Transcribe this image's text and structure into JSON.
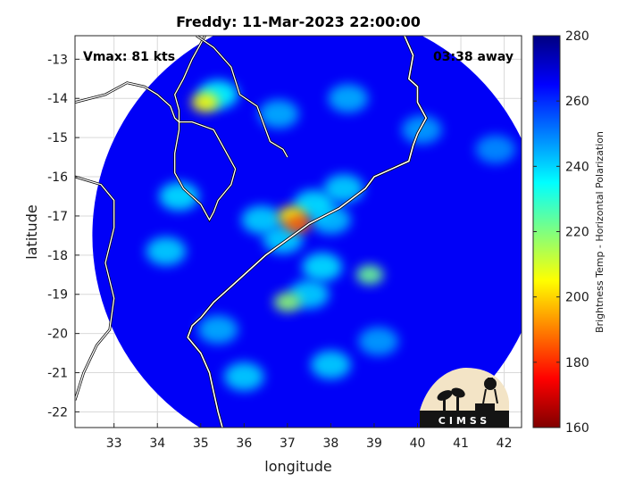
{
  "chart_data": {
    "type": "heatmap",
    "title": "Freddy: 11-Mar-2023 22:00:00",
    "xlabel": "longitude",
    "ylabel": "latitude",
    "xlim": [
      32.1,
      42.4
    ],
    "ylim": [
      -22.4,
      -12.4
    ],
    "xticks": [
      "33",
      "34",
      "35",
      "36",
      "37",
      "38",
      "39",
      "40",
      "41",
      "42"
    ],
    "yticks": [
      "-13",
      "-14",
      "-15",
      "-16",
      "-17",
      "-18",
      "-19",
      "-20",
      "-21",
      "-22"
    ],
    "grid": true,
    "annotations": {
      "vmax": "Vmax: 81 kts",
      "time_away": "03:38 away"
    },
    "colorbar": {
      "label": "Brightness Temp - Horizontal Polarization",
      "range": [
        160,
        280
      ],
      "ticks": [
        "280",
        "260",
        "240",
        "220",
        "200",
        "180",
        "160"
      ],
      "colormap": "jet"
    },
    "swath": {
      "center": [
        37.7,
        -17.5
      ],
      "radius_deg": 5.2,
      "background_temp": 266
    },
    "features": [
      {
        "lon": 37.25,
        "lat": -17.2,
        "temp": 186
      },
      {
        "lon": 37.1,
        "lat": -17.0,
        "temp": 205
      },
      {
        "lon": 36.9,
        "lat": -17.6,
        "temp": 240
      },
      {
        "lon": 37.6,
        "lat": -16.7,
        "temp": 238
      },
      {
        "lon": 38.0,
        "lat": -17.1,
        "temp": 242
      },
      {
        "lon": 36.4,
        "lat": -17.1,
        "temp": 240
      },
      {
        "lon": 35.1,
        "lat": -14.1,
        "temp": 205
      },
      {
        "lon": 35.4,
        "lat": -13.9,
        "temp": 235
      },
      {
        "lon": 37.0,
        "lat": -19.2,
        "temp": 218
      },
      {
        "lon": 37.5,
        "lat": -19.0,
        "temp": 240
      },
      {
        "lon": 38.9,
        "lat": -18.5,
        "temp": 222
      },
      {
        "lon": 37.8,
        "lat": -18.3,
        "temp": 238
      },
      {
        "lon": 38.3,
        "lat": -16.3,
        "temp": 240
      },
      {
        "lon": 34.5,
        "lat": -16.5,
        "temp": 238
      },
      {
        "lon": 34.2,
        "lat": -17.9,
        "temp": 240
      },
      {
        "lon": 38.0,
        "lat": -20.8,
        "temp": 240
      },
      {
        "lon": 36.0,
        "lat": -21.1,
        "temp": 240
      },
      {
        "lon": 35.4,
        "lat": -19.9,
        "temp": 244
      },
      {
        "lon": 38.4,
        "lat": -14.0,
        "temp": 244
      },
      {
        "lon": 40.1,
        "lat": -14.8,
        "temp": 246
      },
      {
        "lon": 41.8,
        "lat": -15.3,
        "temp": 248
      },
      {
        "lon": 39.1,
        "lat": -20.2,
        "temp": 246
      },
      {
        "lon": 36.8,
        "lat": -14.4,
        "temp": 244
      }
    ],
    "coastline": [
      [
        39.7,
        -12.4
      ],
      [
        39.9,
        -12.9
      ],
      [
        39.8,
        -13.5
      ],
      [
        40.0,
        -13.7
      ],
      [
        40.0,
        -14.1
      ],
      [
        40.2,
        -14.5
      ],
      [
        40.0,
        -14.9
      ],
      [
        39.9,
        -15.2
      ],
      [
        39.8,
        -15.6
      ],
      [
        39.4,
        -15.8
      ],
      [
        39.0,
        -16.0
      ],
      [
        38.8,
        -16.3
      ],
      [
        38.2,
        -16.8
      ],
      [
        37.5,
        -17.2
      ],
      [
        37.0,
        -17.6
      ],
      [
        36.5,
        -18.0
      ],
      [
        36.2,
        -18.3
      ],
      [
        35.7,
        -18.8
      ],
      [
        35.3,
        -19.2
      ],
      [
        35.0,
        -19.6
      ],
      [
        34.8,
        -19.8
      ],
      [
        34.7,
        -20.1
      ],
      [
        35.0,
        -20.5
      ],
      [
        35.2,
        -21.0
      ],
      [
        35.3,
        -21.5
      ],
      [
        35.4,
        -22.0
      ],
      [
        35.5,
        -22.4
      ]
    ],
    "borders": [
      [
        [
          32.1,
          -14.1
        ],
        [
          32.8,
          -13.9
        ],
        [
          33.3,
          -13.6
        ],
        [
          33.7,
          -13.7
        ],
        [
          34.0,
          -13.9
        ],
        [
          34.3,
          -14.2
        ],
        [
          34.4,
          -14.5
        ],
        [
          34.5,
          -14.6
        ],
        [
          34.8,
          -14.6
        ],
        [
          35.3,
          -14.8
        ],
        [
          35.5,
          -15.2
        ],
        [
          35.8,
          -15.8
        ],
        [
          35.7,
          -16.2
        ],
        [
          35.4,
          -16.6
        ],
        [
          35.3,
          -16.9
        ],
        [
          35.2,
          -17.1
        ],
        [
          35.0,
          -16.7
        ],
        [
          34.6,
          -16.3
        ],
        [
          34.4,
          -15.9
        ],
        [
          34.4,
          -15.4
        ],
        [
          34.5,
          -14.8
        ],
        [
          34.5,
          -14.3
        ],
        [
          34.4,
          -13.9
        ],
        [
          34.6,
          -13.5
        ],
        [
          34.8,
          -13.0
        ],
        [
          35.0,
          -12.6
        ],
        [
          35.1,
          -12.4
        ]
      ],
      [
        [
          34.9,
          -12.4
        ],
        [
          35.3,
          -12.7
        ],
        [
          35.7,
          -13.2
        ],
        [
          35.9,
          -13.9
        ],
        [
          36.3,
          -14.2
        ],
        [
          36.6,
          -15.1
        ],
        [
          36.9,
          -15.3
        ],
        [
          37.0,
          -15.5
        ]
      ],
      [
        [
          32.1,
          -16.0
        ],
        [
          32.7,
          -16.2
        ],
        [
          33.0,
          -16.6
        ],
        [
          33.0,
          -17.3
        ],
        [
          32.8,
          -18.2
        ],
        [
          33.0,
          -19.1
        ],
        [
          32.9,
          -19.9
        ],
        [
          32.6,
          -20.3
        ],
        [
          32.3,
          -21.0
        ],
        [
          32.1,
          -21.7
        ]
      ]
    ],
    "logo": "CIMSS"
  }
}
